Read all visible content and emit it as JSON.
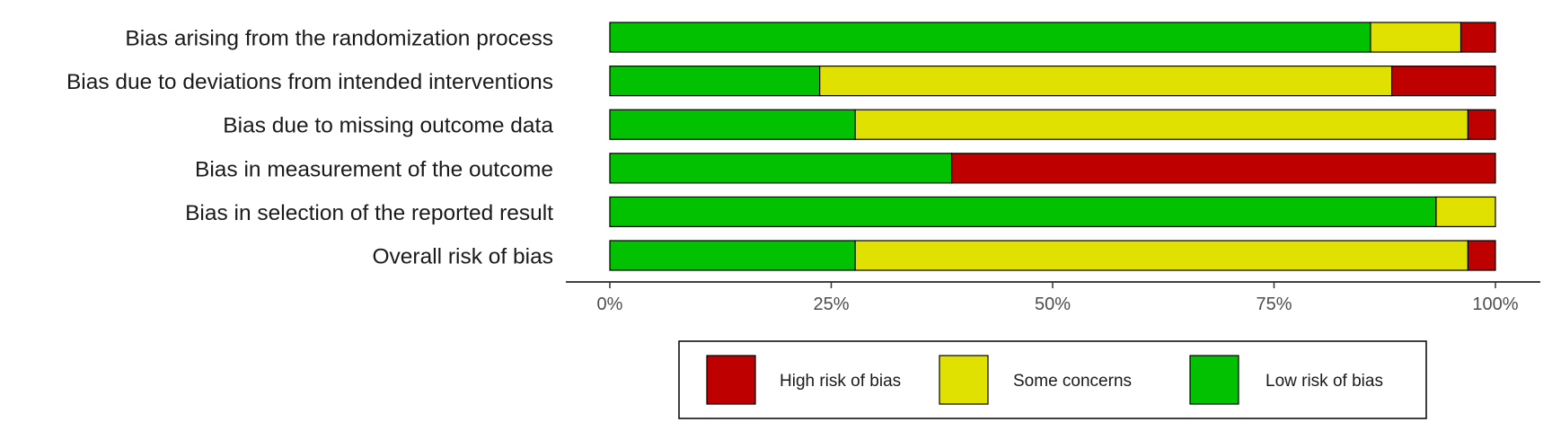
{
  "chart_data": {
    "type": "bar",
    "orientation": "horizontal",
    "stacked": true,
    "title": "",
    "xlabel": "",
    "ylabel": "",
    "xlim": [
      0,
      100
    ],
    "x_ticks": [
      "0%",
      "25%",
      "50%",
      "75%",
      "100%"
    ],
    "x_tick_values": [
      0,
      25,
      50,
      75,
      100
    ],
    "grid": false,
    "legend_position": "bottom",
    "categories": [
      "Bias arising from the randomization process",
      "Bias due to deviations from intended interventions",
      "Bias due to missing outcome data",
      "Bias in measurement of the outcome",
      "Bias in selection of the reported result",
      "Overall risk of bias"
    ],
    "series": [
      {
        "name": "Low risk of bias",
        "color": "#02C100",
        "values": [
          85.9,
          23.7,
          27.7,
          38.6,
          93.3,
          27.7
        ]
      },
      {
        "name": "Some concerns",
        "color": "#E1E100",
        "values": [
          10.2,
          64.6,
          69.2,
          0,
          6.7,
          69.2
        ]
      },
      {
        "name": "High risk of bias",
        "color": "#BF0000",
        "values": [
          3.9,
          11.7,
          3.1,
          61.4,
          0,
          3.1
        ]
      }
    ],
    "legend_order": [
      "High risk of bias",
      "Some concerns",
      "Low risk of bias"
    ]
  }
}
